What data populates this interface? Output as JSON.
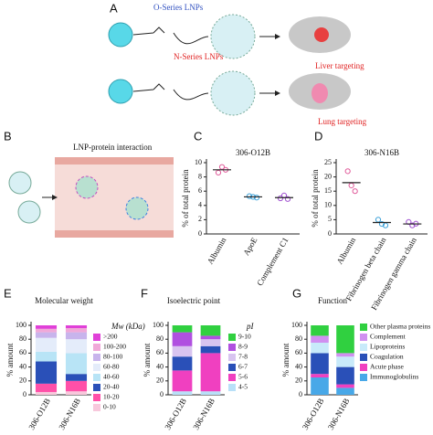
{
  "panel_a": {
    "label": "A",
    "o_series": "O-Series LNPs",
    "n_series": "N-Series LNPs",
    "liver": "Liver targeting",
    "lung": "Lung targeting"
  },
  "panel_b": {
    "label": "B",
    "title": "LNP-protein interaction"
  },
  "chart_data": [
    {
      "type": "dot",
      "label": "C",
      "title": "306-O12B",
      "y_label": "% of total protein",
      "categories": [
        "Albumin",
        "ApoE",
        "Complement C1"
      ],
      "values": [
        9.0,
        5.2,
        5.1
      ],
      "points": [
        [
          8.6,
          9.4,
          9.0
        ],
        [
          5.3,
          5.2,
          5.1
        ],
        [
          5.0,
          5.4,
          4.9
        ]
      ],
      "colors": [
        "#e05a9a",
        "#3aa0d8",
        "#a050d0"
      ],
      "ylim": [
        0,
        10
      ],
      "yticks": [
        0,
        2,
        4,
        6,
        8,
        10
      ]
    },
    {
      "type": "dot",
      "label": "D",
      "title": "306-N16B",
      "y_label": "% of total protein",
      "categories": [
        "Albumin",
        "Fibrinogen beta chain",
        "Fibrinogen gamma chain"
      ],
      "values": [
        18,
        4,
        3.5
      ],
      "points": [
        [
          22,
          17,
          15
        ],
        [
          5,
          3.5,
          3
        ],
        [
          4.2,
          3,
          3.6
        ]
      ],
      "colors": [
        "#e05a9a",
        "#3aa0d8",
        "#a050d0"
      ],
      "ylim": [
        0,
        25
      ],
      "yticks": [
        0,
        5,
        10,
        15,
        20,
        25
      ]
    },
    {
      "type": "stacked_bar",
      "label": "E",
      "title": "Molecular weight",
      "y_label": "% amount",
      "legend_title": "Mw (kDa)",
      "categories": [
        "306-O12B",
        "306-N16B"
      ],
      "series": [
        {
          "name": ">200",
          "color": "#e040d8",
          "values": [
            5,
            4
          ]
        },
        {
          "name": "100-200",
          "color": "#f0a8d8",
          "values": [
            5,
            6
          ]
        },
        {
          "name": "80-100",
          "color": "#c8b4ec",
          "values": [
            8,
            10
          ]
        },
        {
          "name": "60-80",
          "color": "#e4ecfa",
          "values": [
            20,
            20
          ]
        },
        {
          "name": "40-60",
          "color": "#b8e4f6",
          "values": [
            14,
            30
          ]
        },
        {
          "name": "20-40",
          "color": "#2a50b8",
          "values": [
            32,
            10
          ]
        },
        {
          "name": "10-20",
          "color": "#ff50a8",
          "values": [
            12,
            15
          ]
        },
        {
          "name": "0-10",
          "color": "#f8c8dc",
          "values": [
            4,
            5
          ]
        }
      ],
      "ylim": [
        0,
        100
      ],
      "yticks": [
        0,
        20,
        40,
        60,
        80,
        100
      ]
    },
    {
      "type": "stacked_bar",
      "label": "F",
      "title": "Isoelectric point",
      "y_label": "% amount",
      "legend_title": "pI",
      "categories": [
        "306-O12B",
        "306-N16B"
      ],
      "series": [
        {
          "name": "9-10",
          "color": "#30d040",
          "values": [
            10,
            15
          ]
        },
        {
          "name": "8-9",
          "color": "#b050e0",
          "values": [
            20,
            5
          ]
        },
        {
          "name": "7-8",
          "color": "#d8c4f0",
          "values": [
            15,
            10
          ]
        },
        {
          "name": "6-7",
          "color": "#2a50b8",
          "values": [
            20,
            10
          ]
        },
        {
          "name": "5-6",
          "color": "#f040c0",
          "values": [
            30,
            55
          ]
        },
        {
          "name": "4-5",
          "color": "#b8e0f8",
          "values": [
            5,
            5
          ]
        }
      ],
      "ylim": [
        0,
        100
      ],
      "yticks": [
        0,
        20,
        40,
        60,
        80,
        100
      ]
    },
    {
      "type": "stacked_bar",
      "label": "G",
      "title": "Function",
      "y_label": "% amount",
      "categories": [
        "306-O12B",
        "306-N16B"
      ],
      "series": [
        {
          "name": "Other plasma proteins",
          "color": "#30d040",
          "values": [
            15,
            40
          ]
        },
        {
          "name": "Complement",
          "color": "#d090f0",
          "values": [
            10,
            5
          ]
        },
        {
          "name": "Lipoproteins",
          "color": "#c8eafa",
          "values": [
            15,
            15
          ]
        },
        {
          "name": "Coagulation",
          "color": "#2a50b8",
          "values": [
            30,
            25
          ]
        },
        {
          "name": "Acute phase",
          "color": "#f040c0",
          "values": [
            5,
            5
          ]
        },
        {
          "name": "Immunoglobulins",
          "color": "#48a8e8",
          "values": [
            25,
            10
          ]
        }
      ],
      "ylim": [
        0,
        100
      ],
      "yticks": [
        0,
        20,
        40,
        60,
        80,
        100
      ]
    }
  ]
}
